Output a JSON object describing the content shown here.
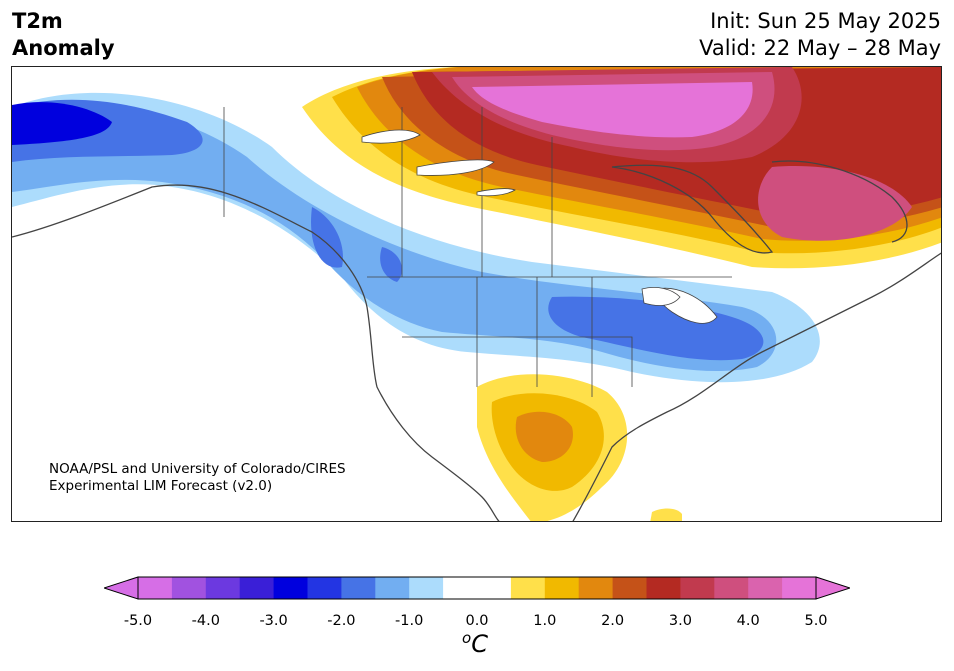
{
  "title": {
    "line1": "T2m",
    "line2": "Anomaly"
  },
  "init": {
    "line1": "Init: Sun 25 May 2025",
    "line2": "Valid: 22 May – 28 May"
  },
  "credit": {
    "line1": "NOAA/PSL and University of Colorado/CIRES",
    "line2": "Experimental LIM Forecast (v2.0)"
  },
  "colorbar": {
    "ticks": [
      "-5.0",
      "-4.0",
      "-3.0",
      "-2.0",
      "-1.0",
      "0.0",
      "1.0",
      "2.0",
      "3.0",
      "4.0",
      "5.0"
    ],
    "units_prefix": "o",
    "units_main": "C",
    "colors": [
      "#d66ee6",
      "#a152e0",
      "#6c39e0",
      "#3a1fd7",
      "#0000de",
      "#2335e3",
      "#4673e6",
      "#72aef1",
      "#acdcfc",
      "#ffffff",
      "#ffffff",
      "#ffe04a",
      "#f1b900",
      "#e2880e",
      "#c55218",
      "#b42a22",
      "#c13a4e",
      "#cf4f7e",
      "#da63ae",
      "#e573d8"
    ]
  },
  "map": {
    "region": "North America"
  }
}
